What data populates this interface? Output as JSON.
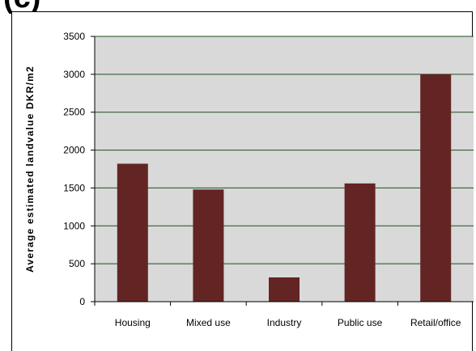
{
  "panel_label": "(c)",
  "chart_data": {
    "type": "bar",
    "title": "",
    "xlabel": "",
    "ylabel": "Average estimated landvalue DKR/m2",
    "categories": [
      "Housing",
      "Mixed use",
      "Industry",
      "Public use",
      "Retail/office"
    ],
    "values": [
      1820,
      1480,
      320,
      1560,
      3000
    ],
    "ylim": [
      0,
      3500
    ],
    "yticks": [
      0,
      500,
      1000,
      1500,
      2000,
      2500,
      3000,
      3500
    ],
    "grid": true,
    "legend": "none",
    "colors": {
      "bar": "#632523",
      "plot_background": "#d9d9d9",
      "gridline": "#1f4e1f",
      "axis": "#000000"
    }
  }
}
